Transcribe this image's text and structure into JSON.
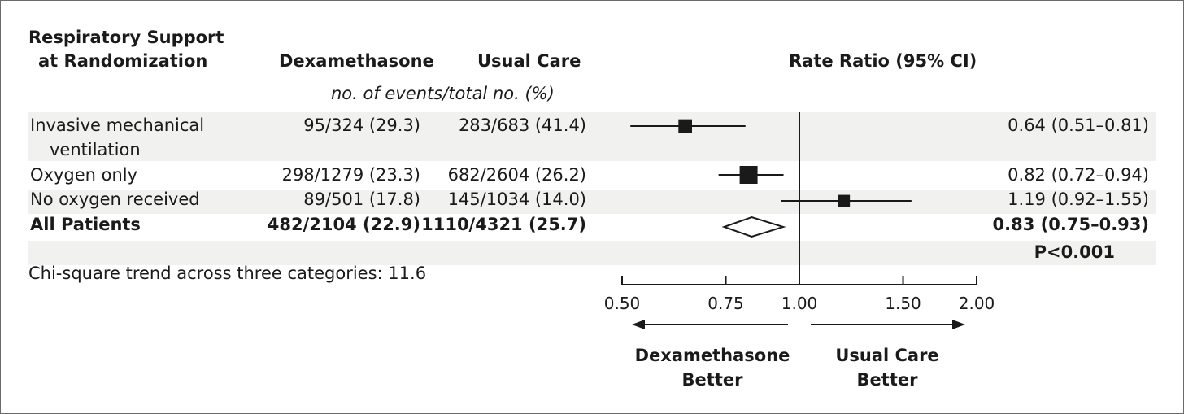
{
  "headers": {
    "subgroup_line1": "Respiratory Support",
    "subgroup_line2": "at Randomization",
    "dexamethasone": "Dexamethasone",
    "usual_care": "Usual Care",
    "rate_ratio": "Rate Ratio (95% CI)",
    "units_note": "no. of events/total no. (%)"
  },
  "rows": [
    {
      "label_line1": "Invasive mechanical",
      "label_line2": "ventilation",
      "dexamethasone": "95/324 (29.3)",
      "usual_care": "283/683 (41.4)",
      "rate_ratio_text": "0.64 (0.51–0.81)"
    },
    {
      "label_line1": "Oxygen only",
      "label_line2": "",
      "dexamethasone": "298/1279 (23.3)",
      "usual_care": "682/2604 (26.2)",
      "rate_ratio_text": "0.82 (0.72–0.94)"
    },
    {
      "label_line1": "No oxygen received",
      "label_line2": "",
      "dexamethasone": "89/501 (17.8)",
      "usual_care": "145/1034 (14.0)",
      "rate_ratio_text": "1.19 (0.92–1.55)"
    },
    {
      "label_line1": "All Patients",
      "label_line2": "",
      "dexamethasone": "482/2104 (22.9)",
      "usual_care": "1110/4321 (25.7)",
      "rate_ratio_text": "0.83 (0.75–0.93)"
    }
  ],
  "p_value": "P<0.001",
  "footnote": "Chi-square trend across three categories: 11.6",
  "direction_labels": {
    "left_line1": "Dexamethasone",
    "left_line2": "Better",
    "right_line1": "Usual Care",
    "right_line2": "Better"
  },
  "chart_data": {
    "type": "forest",
    "x_scale": "log",
    "xlim": [
      0.5,
      2.0
    ],
    "reference_line": 1.0,
    "tick_values": [
      0.5,
      0.75,
      1.0,
      1.5,
      2.0
    ],
    "tick_labels": [
      "0.50",
      "0.75",
      "1.00",
      "1.50",
      "2.00"
    ],
    "points": [
      {
        "label": "Invasive mechanical ventilation",
        "estimate": 0.64,
        "lower": 0.51,
        "upper": 0.81,
        "marker": "square",
        "weight": 378
      },
      {
        "label": "Oxygen only",
        "estimate": 0.82,
        "lower": 0.72,
        "upper": 0.94,
        "marker": "square",
        "weight": 980
      },
      {
        "label": "No oxygen received",
        "estimate": 1.19,
        "lower": 0.92,
        "upper": 1.55,
        "marker": "square",
        "weight": 234
      },
      {
        "label": "All Patients",
        "estimate": 0.83,
        "lower": 0.75,
        "upper": 0.93,
        "marker": "diamond",
        "weight": 1592
      }
    ],
    "colors": {
      "ink": "#1a1a1a",
      "band": "#f1f1f0"
    }
  }
}
